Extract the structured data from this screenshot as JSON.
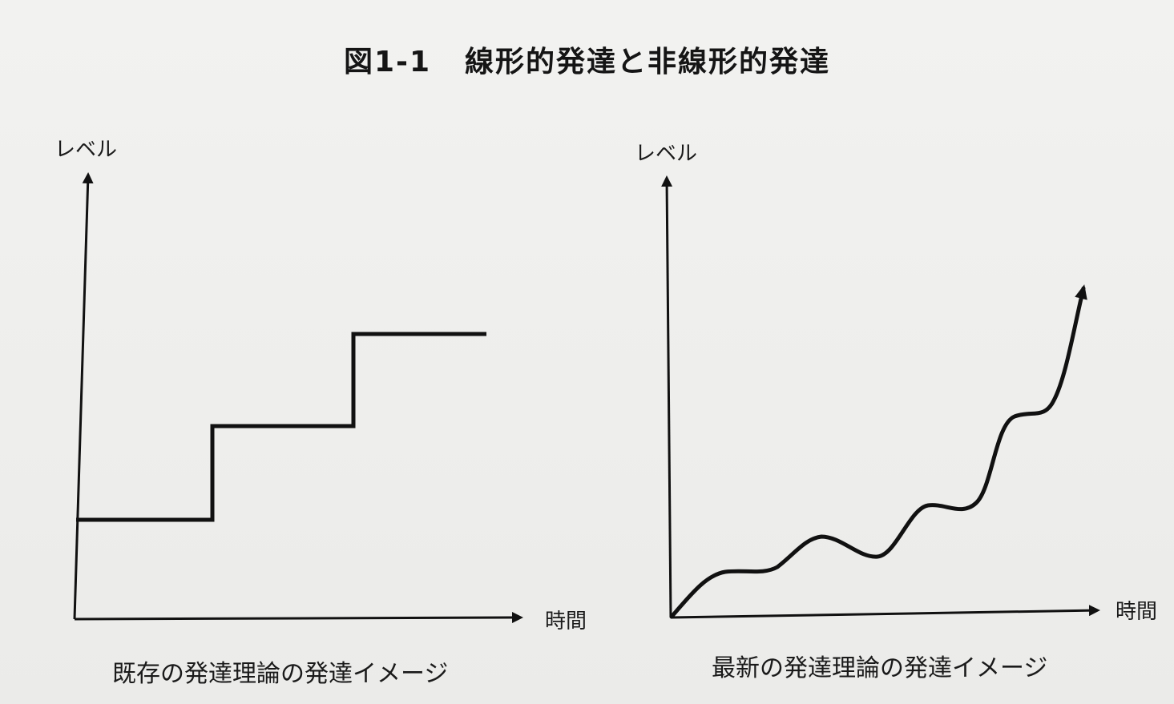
{
  "figure": {
    "number": "図1-1",
    "title": "線形的発達と非線形的発達"
  },
  "panels": [
    {
      "y_axis_label": "レベル",
      "x_axis_label": "時間",
      "caption": "既存の発達理論の発達イメージ",
      "curve_style": "staircase",
      "steps": 3
    },
    {
      "y_axis_label": "レベル",
      "x_axis_label": "時間",
      "caption": "最新の発達理論の発達イメージ",
      "curve_style": "wavy-accelerating",
      "has_end_arrow": true
    }
  ]
}
